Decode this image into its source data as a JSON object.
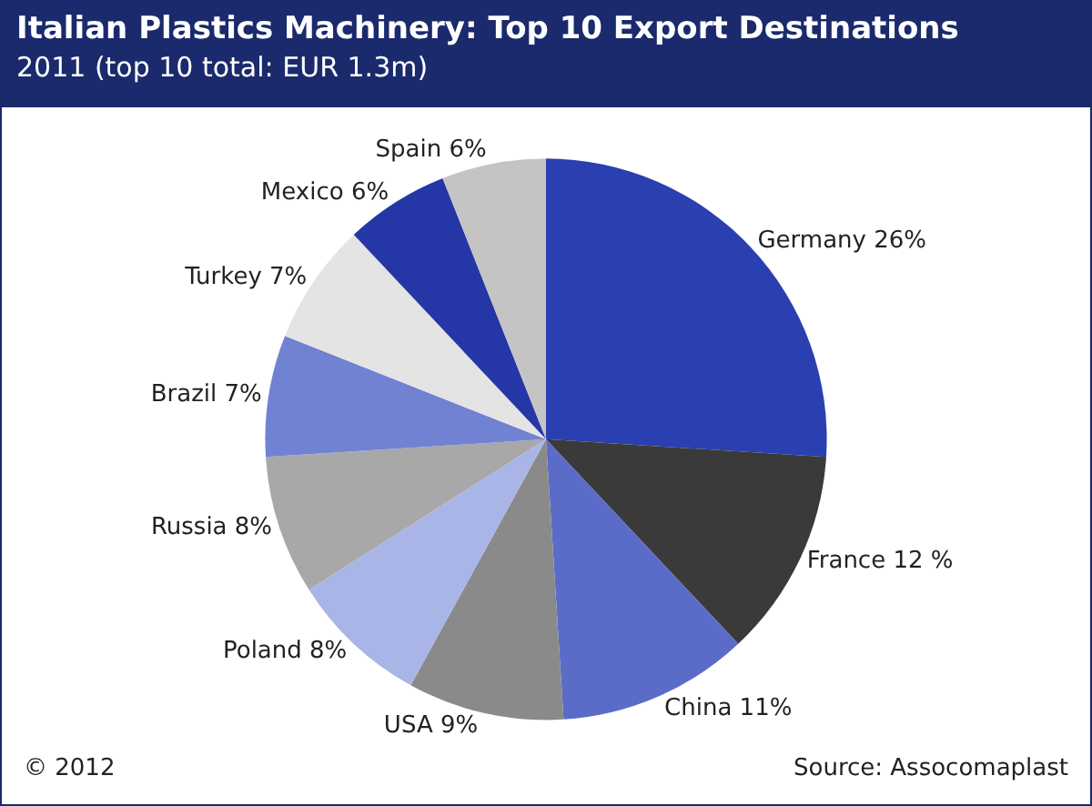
{
  "chart_data": {
    "type": "pie",
    "title": "Italian Plastics Machinery: Top 10 Export Destinations",
    "subtitle": "2011 (top 10 total: EUR 1.3m)",
    "categories": [
      "Germany",
      "France",
      "China",
      "USA",
      "Poland",
      "Russia",
      "Brazil",
      "Turkey",
      "Mexico",
      "Spain"
    ],
    "values": [
      26,
      12,
      11,
      9,
      8,
      8,
      7,
      7,
      6,
      6
    ],
    "value_labels": [
      "26%",
      "12 %",
      "11%",
      "9%",
      "8%",
      "8%",
      "7%",
      "7%",
      "6%",
      "6%"
    ],
    "colors": [
      "#2a3fb0",
      "#3a3a3a",
      "#5a6cc8",
      "#8a8a8a",
      "#a9b5e6",
      "#a8a8a8",
      "#7282d2",
      "#e4e4e4",
      "#2536a6",
      "#c4c4c4"
    ],
    "legend": false,
    "annotations": [
      "© 2012",
      "Source: Assocomaplast"
    ]
  }
}
